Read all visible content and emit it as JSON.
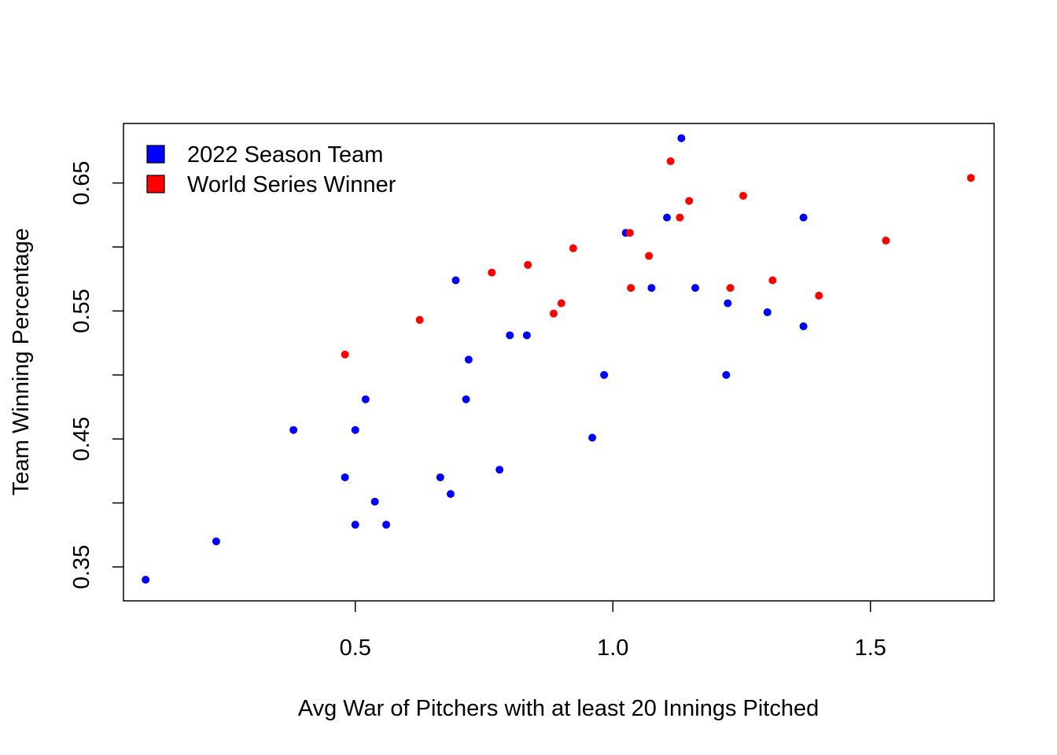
{
  "chart_data": {
    "type": "scatter",
    "title": "",
    "xlabel": "Avg War of Pitchers with at least 20 Innings Pitched",
    "ylabel": "Team Winning Percentage",
    "xlim": [
      0.05,
      1.74
    ],
    "ylim": [
      0.3235,
      0.6965
    ],
    "x_ticks": [
      0.5,
      1.0,
      1.5
    ],
    "x_tick_labels": [
      "0.5",
      "1.0",
      "1.5"
    ],
    "y_ticks": [
      0.35,
      0.4,
      0.45,
      0.5,
      0.55,
      0.6,
      0.65
    ],
    "y_tick_labels": [
      "0.35",
      "",
      "0.45",
      "",
      "0.55",
      "",
      "0.65"
    ],
    "grid": false,
    "legend": {
      "placement": "top-left",
      "entries": [
        {
          "label": "2022 Season Team",
          "color": "#0000ff"
        },
        {
          "label": "World Series Winner",
          "color": "#ff0000"
        }
      ]
    },
    "series": [
      {
        "name": "2022 Season Team",
        "color": "#0000ff",
        "points": [
          [
            0.093,
            0.34
          ],
          [
            0.23,
            0.37
          ],
          [
            0.38,
            0.457
          ],
          [
            0.48,
            0.42
          ],
          [
            0.5,
            0.383
          ],
          [
            0.5,
            0.457
          ],
          [
            0.52,
            0.481
          ],
          [
            0.538,
            0.401
          ],
          [
            0.56,
            0.383
          ],
          [
            0.665,
            0.42
          ],
          [
            0.685,
            0.407
          ],
          [
            0.695,
            0.574
          ],
          [
            0.715,
            0.481
          ],
          [
            0.72,
            0.512
          ],
          [
            0.78,
            0.426
          ],
          [
            0.8,
            0.531
          ],
          [
            0.833,
            0.531
          ],
          [
            0.96,
            0.451
          ],
          [
            0.983,
            0.5
          ],
          [
            1.025,
            0.611
          ],
          [
            1.075,
            0.568
          ],
          [
            1.105,
            0.623
          ],
          [
            1.133,
            0.685
          ],
          [
            1.16,
            0.568
          ],
          [
            1.22,
            0.5
          ],
          [
            1.223,
            0.556
          ],
          [
            1.3,
            0.549
          ],
          [
            1.37,
            0.538
          ],
          [
            1.37,
            0.623
          ]
        ]
      },
      {
        "name": "World Series Winner",
        "color": "#ff0000",
        "points": [
          [
            0.48,
            0.516
          ],
          [
            0.625,
            0.543
          ],
          [
            0.765,
            0.58
          ],
          [
            0.835,
            0.586
          ],
          [
            0.885,
            0.548
          ],
          [
            0.9,
            0.556
          ],
          [
            0.923,
            0.599
          ],
          [
            1.033,
            0.611
          ],
          [
            1.035,
            0.568
          ],
          [
            1.07,
            0.593
          ],
          [
            1.112,
            0.667
          ],
          [
            1.13,
            0.623
          ],
          [
            1.148,
            0.636
          ],
          [
            1.253,
            0.64
          ],
          [
            1.228,
            0.568
          ],
          [
            1.31,
            0.574
          ],
          [
            1.4,
            0.562
          ],
          [
            1.53,
            0.605
          ],
          [
            1.695,
            0.654
          ]
        ]
      }
    ]
  }
}
